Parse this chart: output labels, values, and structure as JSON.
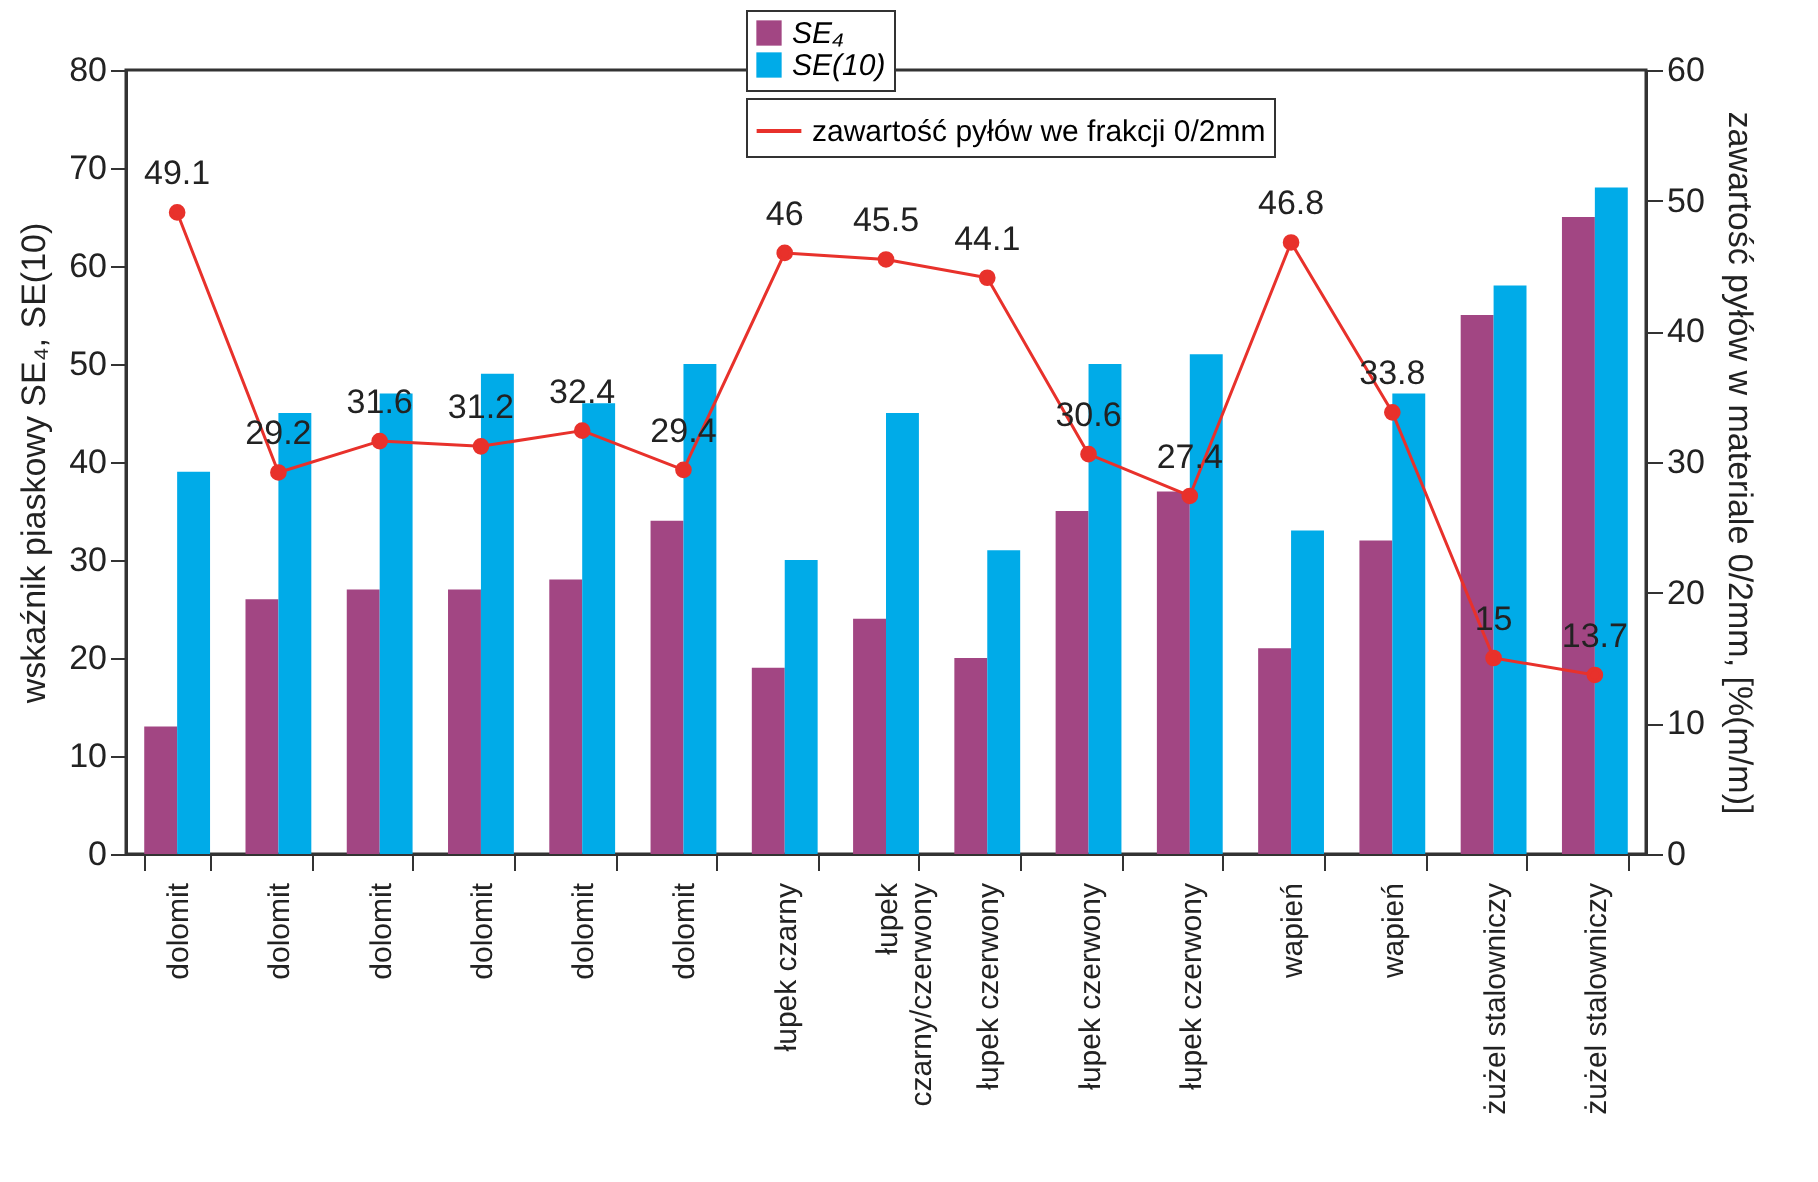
{
  "chart_data": {
    "type": "bar",
    "categories": [
      "dolomit",
      "dolomit",
      "dolomit",
      "dolomit",
      "dolomit",
      "dolomit",
      "łupek czarny",
      "łupek\nczarny/czerwony",
      "łupek czerwony",
      "łupek czerwony",
      "łupek czerwony",
      "wapień",
      "wapień",
      "żużel stalowniczy",
      "żużel stalowniczy"
    ],
    "series": [
      {
        "name": "SE₄",
        "color": "#a24683",
        "values": [
          13,
          26,
          27,
          27,
          28,
          34,
          19,
          24,
          20,
          35,
          37,
          21,
          32,
          55,
          65
        ]
      },
      {
        "name": "SE(10)",
        "color": "#00abe8",
        "values": [
          39,
          45,
          47,
          49,
          46,
          50,
          30,
          45,
          31,
          50,
          51,
          33,
          47,
          58,
          68
        ]
      },
      {
        "name": "zawartość pyłów we frakcji 0/2mm",
        "type": "line",
        "axis": "y2",
        "color": "#e8312b",
        "marker": "circle",
        "data_labels": true,
        "values": [
          49.1,
          29.2,
          31.6,
          31.2,
          32.4,
          29.4,
          46,
          45.5,
          44.1,
          30.6,
          27.4,
          46.8,
          33.8,
          15,
          13.7
        ]
      }
    ],
    "ylabel": "wskaźnik piaskowy SE₄, SE(10)",
    "y2label": "zawartość pyłów w materiale 0/2mm, [%(m/m)]",
    "ylim": [
      0,
      80
    ],
    "yticks": [
      0,
      10,
      20,
      30,
      40,
      50,
      60,
      70,
      80
    ],
    "y2lim": [
      0,
      60
    ],
    "y2ticks": [
      0,
      10,
      20,
      30,
      40,
      50,
      60
    ],
    "grid": false,
    "legend": "top"
  }
}
